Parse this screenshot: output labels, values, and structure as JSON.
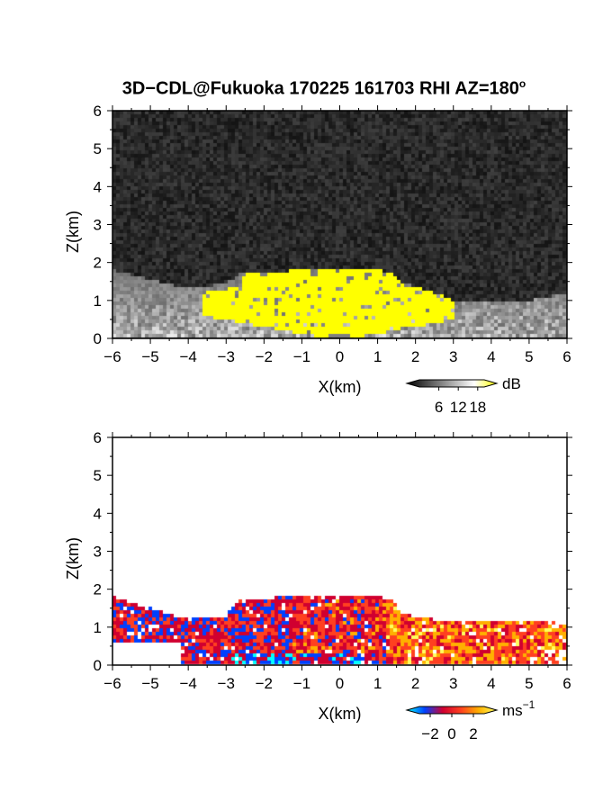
{
  "title": "3D−CDL@Fukuoka 170225 161703 RHI AZ=180",
  "title_superscript": "o",
  "chart_data": [
    {
      "type": "heatmap",
      "panel": "reflectivity",
      "xlabel": "X(km)",
      "ylabel": "Z(km)",
      "xlim": [
        -6,
        6
      ],
      "ylim": [
        0,
        6
      ],
      "xticks": [
        "−6",
        "−5",
        "−4",
        "−3",
        "−2",
        "−1",
        "0",
        "1",
        "2",
        "3",
        "4",
        "5",
        "6"
      ],
      "yticks": [
        "0",
        "1",
        "2",
        "3",
        "4",
        "5",
        "6"
      ],
      "colorbar": {
        "unit": "dB",
        "ticks": [
          "6",
          "12",
          "18"
        ],
        "range": [
          0,
          20
        ],
        "colors": [
          "#000000",
          "#555555",
          "#aaaaaa",
          "#ffffff",
          "#ffff00"
        ]
      },
      "background": "#262626",
      "echo_top_profile": [
        [
          -6.0,
          1.8
        ],
        [
          -5.0,
          1.55
        ],
        [
          -4.0,
          1.3
        ],
        [
          -3.0,
          1.45
        ],
        [
          -2.6,
          1.7
        ],
        [
          -1.5,
          1.75
        ],
        [
          -1.0,
          1.85
        ],
        [
          0.0,
          1.8
        ],
        [
          1.0,
          1.8
        ],
        [
          1.3,
          1.75
        ],
        [
          1.6,
          1.5
        ],
        [
          2.0,
          1.35
        ],
        [
          2.5,
          1.2
        ],
        [
          3.0,
          1.0
        ],
        [
          4.0,
          0.95
        ],
        [
          5.0,
          1.0
        ],
        [
          6.0,
          1.2
        ]
      ],
      "saturated_region_profile": [
        [
          -3.6,
          1.2
        ],
        [
          -2.6,
          1.4
        ],
        [
          -2.5,
          1.7
        ],
        [
          -1.5,
          1.75
        ],
        [
          -1.0,
          1.85
        ],
        [
          0.0,
          1.8
        ],
        [
          1.0,
          1.8
        ],
        [
          1.3,
          1.75
        ],
        [
          1.6,
          1.5
        ],
        [
          1.8,
          1.3
        ],
        [
          2.2,
          1.4
        ],
        [
          2.5,
          1.2
        ],
        [
          3.0,
          1.0
        ]
      ]
    },
    {
      "type": "heatmap",
      "panel": "doppler_velocity",
      "xlabel": "X(km)",
      "ylabel": "Z(km)",
      "xlim": [
        -6,
        6
      ],
      "ylim": [
        0,
        6
      ],
      "xticks": [
        "−6",
        "−5",
        "−4",
        "−3",
        "−2",
        "−1",
        "0",
        "1",
        "2",
        "3",
        "4",
        "5",
        "6"
      ],
      "yticks": [
        "0",
        "1",
        "2",
        "3",
        "4",
        "5",
        "6"
      ],
      "colorbar": {
        "unit": "ms",
        "unit_superscript": "−1",
        "ticks": [
          "−2",
          "0",
          "2"
        ],
        "range": [
          -3,
          3
        ],
        "colors": [
          "#00ffff",
          "#0040ff",
          "#d00030",
          "#ff4020",
          "#ffb000",
          "#ffff60"
        ]
      },
      "echo_top_profile": [
        [
          -6.0,
          1.8
        ],
        [
          -5.0,
          1.5
        ],
        [
          -4.0,
          1.2
        ],
        [
          -3.0,
          1.3
        ],
        [
          -2.7,
          1.7
        ],
        [
          -1.5,
          1.8
        ],
        [
          -1.0,
          1.85
        ],
        [
          0.0,
          1.8
        ],
        [
          1.0,
          1.8
        ],
        [
          1.4,
          1.75
        ],
        [
          1.6,
          1.4
        ],
        [
          2.0,
          1.3
        ],
        [
          2.5,
          1.2
        ],
        [
          3.0,
          1.15
        ],
        [
          4.0,
          1.15
        ],
        [
          5.0,
          1.15
        ],
        [
          6.0,
          1.1
        ]
      ]
    }
  ]
}
